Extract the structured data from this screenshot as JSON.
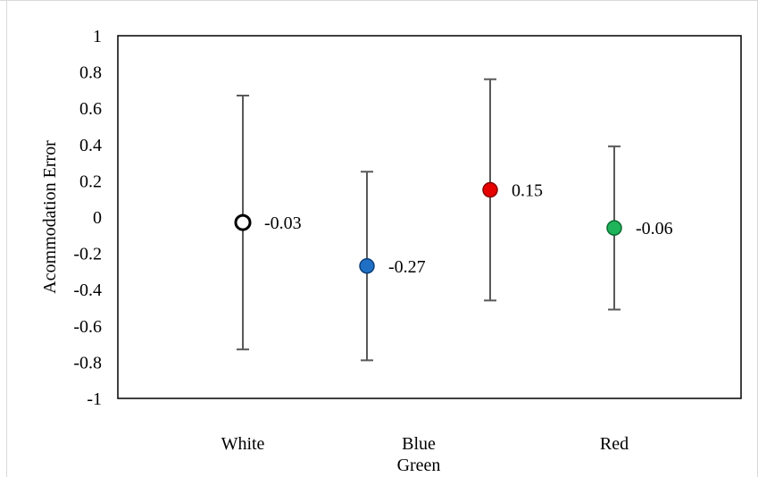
{
  "chart_data": {
    "type": "scatter",
    "ylabel": "Acommodation Error",
    "ylim": [
      -1,
      1
    ],
    "yticks": [
      "1",
      "0.8",
      "0.6",
      "0.4",
      "0.2",
      "0",
      "-0.2",
      "-0.4",
      "-0.6",
      "-0.8",
      "-1"
    ],
    "ytick_values": [
      1,
      0.8,
      0.6,
      0.4,
      0.2,
      0,
      -0.2,
      -0.4,
      -0.6,
      -0.8,
      -1
    ],
    "categories": [
      "White",
      "Blue",
      "Red"
    ],
    "extra_category_label": "Green",
    "points": [
      {
        "category": "White",
        "value": -0.03,
        "label": "-0.03",
        "err_high": 0.67,
        "err_low": -0.73,
        "color": "#ffffff",
        "stroke": "#000000"
      },
      {
        "category": "Blue",
        "value": -0.27,
        "label": "-0.27",
        "err_high": 0.25,
        "err_low": -0.79,
        "color": "#1f6fc5",
        "stroke": "#0d3f7a"
      },
      {
        "category": "Green",
        "value": 0.15,
        "label": "0.15",
        "err_high": 0.76,
        "err_low": -0.46,
        "color": "#e60000",
        "stroke": "#8a0000"
      },
      {
        "category": "Red",
        "value": -0.06,
        "label": "-0.06",
        "err_high": 0.39,
        "err_low": -0.51,
        "color": "#1fb35a",
        "stroke": "#0a6b30"
      }
    ],
    "grid": false
  }
}
